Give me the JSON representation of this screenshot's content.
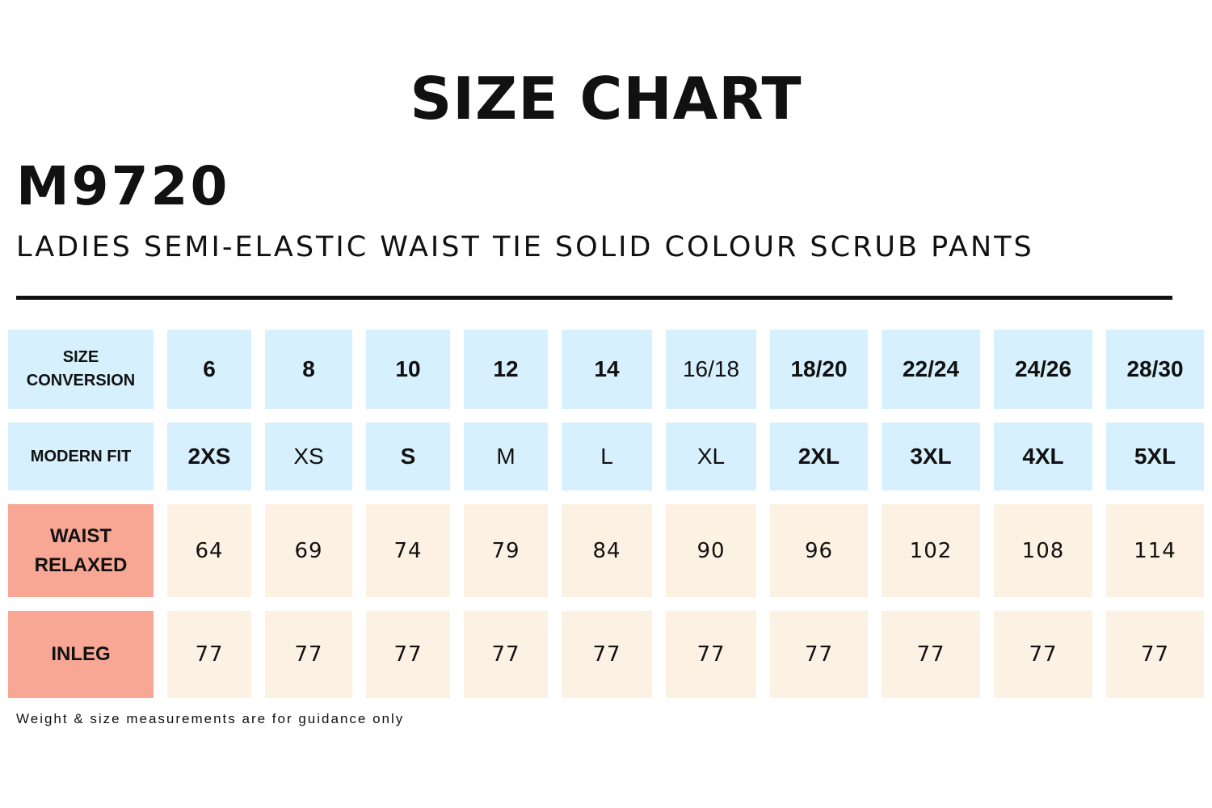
{
  "title": "SIZE CHART",
  "product_code": "M9720",
  "product_name": "LADIES SEMI-ELASTIC WAIST TIE SOLID COLOUR SCRUB PANTS",
  "colors": {
    "header_bg": "#d7f0fd",
    "measure_label_bg": "#f8a795",
    "measure_bg": "#fdf1e3",
    "text": "#111111"
  },
  "rows": [
    {
      "label": "SIZE\nCONVERSION",
      "type": "header",
      "values": [
        "6",
        "8",
        "10",
        "12",
        "14",
        "16/18",
        "18/20",
        "22/24",
        "24/26",
        "28/30"
      ],
      "bold": [
        true,
        true,
        true,
        true,
        true,
        false,
        true,
        true,
        true,
        true
      ]
    },
    {
      "label": "MODERN FIT",
      "type": "header",
      "values": [
        "2XS",
        "XS",
        "S",
        "M",
        "L",
        "XL",
        "2XL",
        "3XL",
        "4XL",
        "5XL"
      ],
      "bold": [
        true,
        false,
        true,
        false,
        false,
        false,
        true,
        true,
        true,
        true
      ]
    },
    {
      "label": "WAIST\nRELAXED",
      "type": "measure",
      "values": [
        "64",
        "69",
        "74",
        "79",
        "84",
        "90",
        "96",
        "102",
        "108",
        "114"
      ]
    },
    {
      "label": "INLEG",
      "type": "measure",
      "values": [
        "77",
        "77",
        "77",
        "77",
        "77",
        "77",
        "77",
        "77",
        "77",
        "77"
      ]
    }
  ],
  "footnote": "Weight & size measurements are for guidance only"
}
